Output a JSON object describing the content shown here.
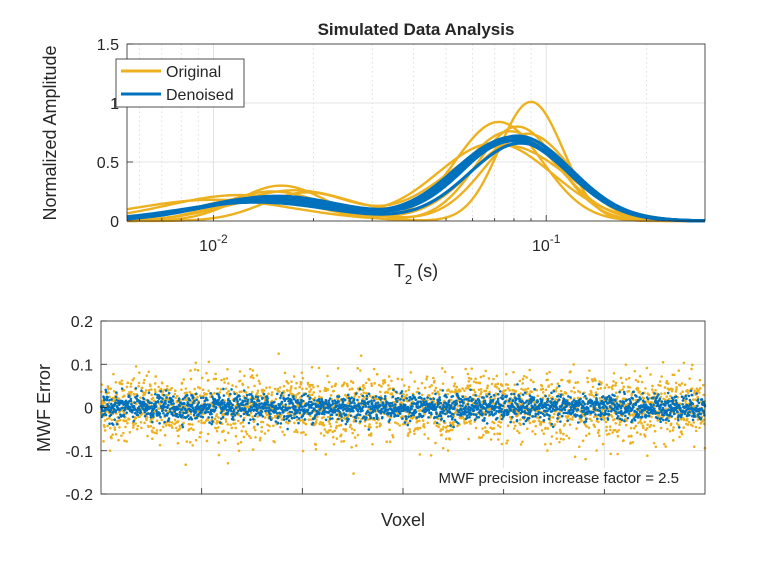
{
  "chart_data": [
    {
      "type": "line",
      "title": "Simulated Data Analysis",
      "xlabel_main": "T",
      "xlabel_sub": "2",
      "xlabel_unit": " (s)",
      "ylabel": "Normalized Amplitude",
      "xscale": "log",
      "xlim": [
        0.0055,
        0.3
      ],
      "ylim": [
        0,
        1.5
      ],
      "yticks": [
        "0",
        "0.5",
        "1",
        "1.5"
      ],
      "yticks_values": [
        0,
        0.5,
        1,
        1.5
      ],
      "xticks": [
        {
          "base": "10",
          "exp": "-2",
          "value": 0.01
        },
        {
          "base": "10",
          "exp": "-1",
          "value": 0.1
        }
      ],
      "legend_position": "top-left",
      "colors": {
        "original": "#EDB120",
        "denoised": "#0072BD"
      },
      "series": [
        {
          "name": "Original",
          "curves": [
            {
              "a1": 0.2,
              "m1": 0.0135,
              "s1": 0.4,
              "a2": 1.01,
              "m2": 0.09,
              "s2": 0.22
            },
            {
              "a1": 0.3,
              "m1": 0.016,
              "s1": 0.3,
              "a2": 0.84,
              "m2": 0.072,
              "s2": 0.3
            },
            {
              "a1": 0.26,
              "m1": 0.0175,
              "s1": 0.42,
              "a2": 0.76,
              "m2": 0.078,
              "s2": 0.33
            },
            {
              "a1": 0.22,
              "m1": 0.012,
              "s1": 0.5,
              "a2": 0.7,
              "m2": 0.085,
              "s2": 0.35
            },
            {
              "a1": 0.25,
              "m1": 0.015,
              "s1": 0.35,
              "a2": 0.66,
              "m2": 0.07,
              "s2": 0.4
            },
            {
              "a1": 0.18,
              "m1": 0.01,
              "s1": 0.55,
              "a2": 0.8,
              "m2": 0.082,
              "s2": 0.28
            },
            {
              "a1": 0.24,
              "m1": 0.019,
              "s1": 0.3,
              "a2": 0.64,
              "m2": 0.076,
              "s2": 0.42
            },
            {
              "a1": 0.2,
              "m1": 0.016,
              "s1": 0.4,
              "a2": 0.74,
              "m2": 0.088,
              "s2": 0.3
            }
          ]
        },
        {
          "name": "Denoised",
          "curves": [
            {
              "a1": 0.17,
              "m1": 0.014,
              "s1": 0.5,
              "a2": 0.68,
              "m2": 0.08,
              "s2": 0.38
            },
            {
              "a1": 0.19,
              "m1": 0.015,
              "s1": 0.48,
              "a2": 0.72,
              "m2": 0.082,
              "s2": 0.37
            },
            {
              "a1": 0.2,
              "m1": 0.0145,
              "s1": 0.46,
              "a2": 0.7,
              "m2": 0.078,
              "s2": 0.39
            },
            {
              "a1": 0.16,
              "m1": 0.0135,
              "s1": 0.52,
              "a2": 0.66,
              "m2": 0.084,
              "s2": 0.36
            },
            {
              "a1": 0.21,
              "m1": 0.0155,
              "s1": 0.47,
              "a2": 0.69,
              "m2": 0.081,
              "s2": 0.38
            },
            {
              "a1": 0.18,
              "m1": 0.0148,
              "s1": 0.49,
              "a2": 0.71,
              "m2": 0.079,
              "s2": 0.37
            }
          ]
        }
      ]
    },
    {
      "type": "scatter",
      "xlabel": "Voxel",
      "ylabel": "MWF Error",
      "ylim": [
        -0.2,
        0.2
      ],
      "yticks": [
        "-0.2",
        "-0.1",
        "0",
        "0.1",
        "0.2"
      ],
      "yticks_values": [
        -0.2,
        -0.1,
        0,
        0.1,
        0.2
      ],
      "n_voxels": 2500,
      "annotation": "MWF precision increase factor = 2.5",
      "series": [
        {
          "name": "Original",
          "color": "#EDB120",
          "std": 0.038
        },
        {
          "name": "Denoised",
          "color": "#0072BD",
          "std": 0.015
        }
      ]
    }
  ]
}
